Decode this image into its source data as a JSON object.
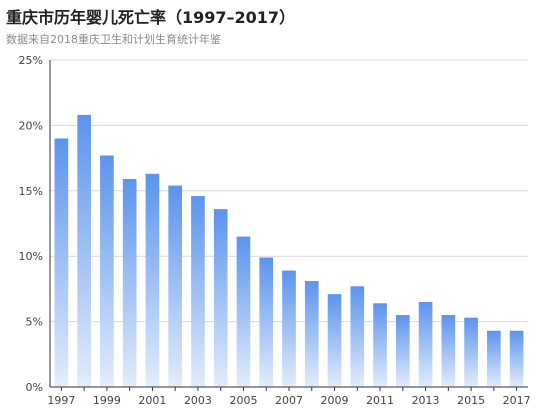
{
  "title": "重庆市历年婴儿死亡率（1997–2017）",
  "subtitle": "数据来自2018重庆卫生和计划生育统计年鉴",
  "chart_data": {
    "type": "bar",
    "categories": [
      "1997",
      "1998",
      "1999",
      "2000",
      "2001",
      "2002",
      "2003",
      "2004",
      "2005",
      "2006",
      "2007",
      "2008",
      "2009",
      "2010",
      "2011",
      "2012",
      "2013",
      "2014",
      "2015",
      "2016",
      "2017"
    ],
    "values": [
      19.0,
      20.8,
      17.7,
      15.9,
      16.3,
      15.4,
      14.6,
      13.6,
      11.5,
      9.9,
      8.9,
      8.1,
      7.1,
      7.7,
      6.4,
      5.5,
      6.5,
      5.5,
      5.3,
      4.3,
      4.3
    ],
    "unit": "%",
    "ylim": [
      0,
      25
    ],
    "yticks": [
      0,
      5,
      10,
      15,
      20,
      25
    ],
    "ytick_labels": [
      "0%",
      "5%",
      "10%",
      "15%",
      "20%",
      "25%"
    ],
    "xtick_labels": [
      "1997",
      "1999",
      "2001",
      "2003",
      "2005",
      "2007",
      "2009",
      "2011",
      "2013",
      "2015",
      "2017"
    ],
    "grid": true,
    "bar_color_top": "#5b93ed",
    "bar_color_bottom": "#e3edfb"
  }
}
